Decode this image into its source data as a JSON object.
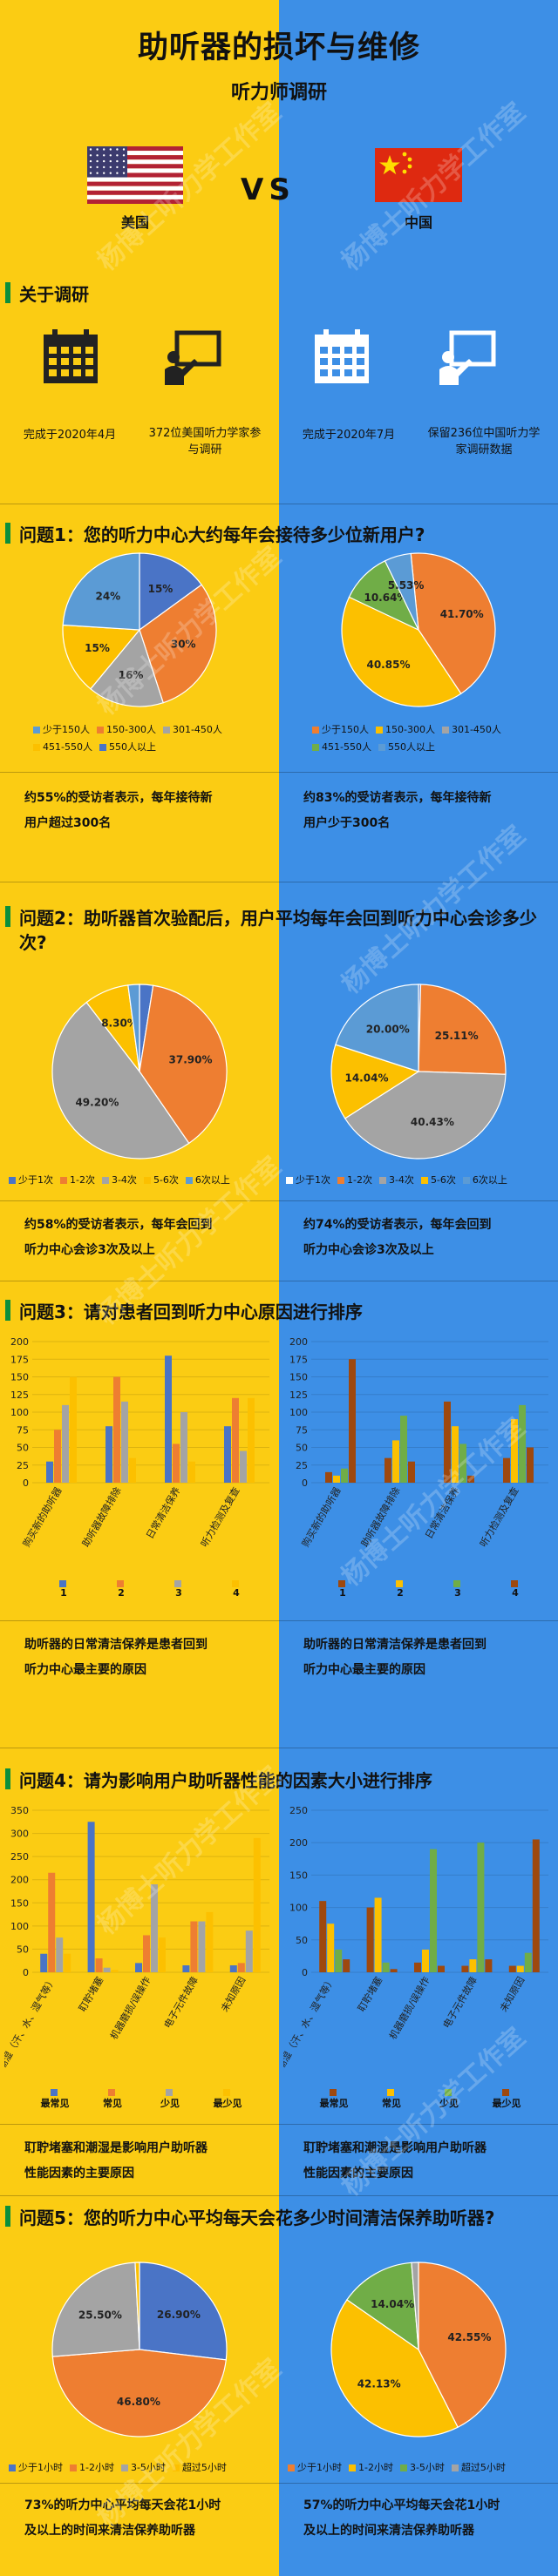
{
  "header": {
    "title": "助听器的损坏与维修",
    "subtitle": "听力师调研",
    "vs": "VS",
    "left_country": "美国",
    "right_country": "中国"
  },
  "about": {
    "title": "关于调研",
    "left_date": "完成于2020年4月",
    "left_people": "372位美国听力学家参与调研",
    "right_date": "完成于2020年7月",
    "right_people": "保留236位中国听力学家调研数据"
  },
  "watermark": "杨博士听力学工作室",
  "colors": {
    "blue": "#4a74c6",
    "orange": "#ee7e31",
    "gray": "#a4a4a4",
    "yellow": "#fcc000",
    "lblue": "#5b9bd5",
    "green": "#70ad47",
    "brown": "#9e480e"
  },
  "q1": {
    "title": "问题1：您的听力中心大约每年会接待多少位新用户?",
    "legend": [
      "少于150人",
      "150-300人",
      "301-450人",
      "451-550人",
      "550人以上"
    ],
    "left_conclusion": [
      "约55%的受访者表示，每年接待新",
      "用户超过300名"
    ],
    "right_conclusion": [
      "约83%的受访者表示，每年接待新",
      "用户少于300名"
    ]
  },
  "q2": {
    "title": "问题2：助听器首次验配后，用户平均每年会回到听力中心会诊多少次?",
    "legend": [
      "少于1次",
      "1-2次",
      "3-4次",
      "5-6次",
      "6次以上"
    ],
    "left_conclusion": [
      "约58%的受访者表示，每年会回到",
      "听力中心会诊3次及以上"
    ],
    "right_conclusion": [
      "约74%的受访者表示，每年会回到",
      "听力中心会诊3次及以上"
    ]
  },
  "q3": {
    "title": "问题3：请对患者回到听力中心原因进行排序",
    "legend": [
      "1",
      "2",
      "3",
      "4"
    ],
    "left_conclusion": [
      "助听器的日常清洁保养是患者回到",
      "听力中心最主要的原因"
    ],
    "right_conclusion": [
      "助听器的日常清洁保养是患者回到",
      "听力中心最主要的原因"
    ]
  },
  "q4": {
    "title": "问题4：请为影响用户助听器性能的因素大小进行排序",
    "legend": [
      "最常见",
      "常见",
      "少见",
      "最少见"
    ],
    "left_conclusion": [
      "耵聍堵塞和潮湿是影响用户助听器",
      "性能因素的主要原因"
    ],
    "right_conclusion": [
      "耵聍堵塞和潮湿是影响用户助听器",
      "性能因素的主要原因"
    ]
  },
  "q5": {
    "title": "问题5：您的听力中心平均每天会花多少时间清洁保养助听器?",
    "legend": [
      "少于1小时",
      "1-2小时",
      "3-5小时",
      "超过5小时"
    ],
    "left_conclusion": [
      "73%的听力中心平均每天会花1小时",
      "及以上的时间来清洁保养助听器"
    ],
    "right_conclusion": [
      "57%的听力中心平均每天会花1小时",
      "及以上的时间来清洁保养助听器"
    ]
  },
  "chart_data": [
    {
      "id": "q1_us",
      "type": "pie",
      "categories": [
        "少于150人",
        "150-300人",
        "301-450人",
        "451-550人",
        "550人以上"
      ],
      "values": [
        15,
        30,
        16,
        15,
        24
      ],
      "labels": [
        "15%",
        "30%",
        "16%",
        "15%",
        "24%"
      ]
    },
    {
      "id": "q1_cn",
      "type": "pie",
      "categories": [
        "少于150人",
        "150-300人",
        "301-450人",
        "451-550人",
        "550人以上"
      ],
      "values": [
        41.7,
        40.85,
        0,
        10.64,
        5.53
      ],
      "labels": [
        "41.70%",
        "40.85%",
        "",
        "10.64%",
        "5.53%"
      ]
    },
    {
      "id": "q2_us",
      "type": "pie",
      "categories": [
        "少于1次",
        "1-2次",
        "3-4次",
        "5-6次",
        "6次以上"
      ],
      "values": [
        2.5,
        37.9,
        49.2,
        8.3,
        2.1
      ],
      "labels": [
        "",
        "37.90%",
        "49.20%",
        "8.30%",
        ""
      ]
    },
    {
      "id": "q2_cn",
      "type": "pie",
      "categories": [
        "少于1次",
        "1-2次",
        "3-4次",
        "5-6次",
        "6次以上"
      ],
      "values": [
        0.4,
        25.11,
        40.43,
        14.04,
        20.0
      ],
      "labels": [
        "",
        "25.11%",
        "40.43%",
        "14.04%",
        "20.00%"
      ]
    },
    {
      "id": "q3_us",
      "type": "bar",
      "ylim": [
        0,
        200
      ],
      "yticks": [
        0,
        25,
        50,
        75,
        100,
        125,
        150,
        175,
        200
      ],
      "categories": [
        "购买新的助听器",
        "助听器故障排除",
        "日常清洁保养",
        "听力检测及复查"
      ],
      "series": [
        {
          "name": "1",
          "values": [
            30,
            80,
            180,
            80
          ]
        },
        {
          "name": "2",
          "values": [
            75,
            150,
            55,
            120
          ]
        },
        {
          "name": "3",
          "values": [
            110,
            115,
            100,
            45
          ]
        },
        {
          "name": "4",
          "values": [
            150,
            35,
            30,
            120
          ]
        }
      ]
    },
    {
      "id": "q3_cn",
      "type": "bar",
      "ylim": [
        0,
        200
      ],
      "yticks": [
        0,
        25,
        50,
        75,
        100,
        125,
        150,
        175,
        200
      ],
      "categories": [
        "购买新的助听器",
        "助听器故障排除",
        "日常清洁保养",
        "听力检测及复查"
      ],
      "series": [
        {
          "name": "1",
          "values": [
            15,
            35,
            115,
            35
          ]
        },
        {
          "name": "2",
          "values": [
            10,
            60,
            80,
            90
          ]
        },
        {
          "name": "3",
          "values": [
            20,
            95,
            55,
            110
          ]
        },
        {
          "name": "4",
          "values": [
            175,
            30,
            10,
            50
          ]
        }
      ]
    },
    {
      "id": "q4_us",
      "type": "bar",
      "ylim": [
        0,
        350
      ],
      "yticks": [
        0,
        50,
        100,
        150,
        200,
        250,
        300,
        350
      ],
      "categories": [
        "潮湿（汗、水、湿气等）",
        "耵聍堵塞",
        "机器磨损/误操作",
        "电子元件故障",
        "未知原因"
      ],
      "series": [
        {
          "name": "最常见",
          "values": [
            40,
            325,
            20,
            15,
            15
          ]
        },
        {
          "name": "常见",
          "values": [
            215,
            30,
            80,
            110,
            20
          ]
        },
        {
          "name": "少见",
          "values": [
            75,
            10,
            190,
            110,
            90
          ]
        },
        {
          "name": "最少见",
          "values": [
            40,
            5,
            75,
            130,
            290
          ]
        }
      ]
    },
    {
      "id": "q4_cn",
      "type": "bar",
      "ylim": [
        0,
        250
      ],
      "yticks": [
        0,
        50,
        100,
        150,
        200,
        250
      ],
      "categories": [
        "潮湿（汗、水、湿气等）",
        "耵聍堵塞",
        "机器磨损/误操作",
        "电子元件故障",
        "未知原因"
      ],
      "series": [
        {
          "name": "最常见",
          "values": [
            110,
            100,
            15,
            10,
            10
          ]
        },
        {
          "name": "常见",
          "values": [
            75,
            115,
            35,
            20,
            10
          ]
        },
        {
          "name": "少见",
          "values": [
            35,
            15,
            190,
            200,
            30
          ]
        },
        {
          "name": "最少见",
          "values": [
            20,
            5,
            10,
            20,
            205
          ]
        }
      ]
    },
    {
      "id": "q5_us",
      "type": "pie",
      "categories": [
        "少于1小时",
        "1-2小时",
        "3-5小时",
        "超过5小时"
      ],
      "values": [
        26.9,
        46.8,
        25.5,
        0.8
      ],
      "labels": [
        "26.90%",
        "46.80%",
        "25.50%",
        ""
      ]
    },
    {
      "id": "q5_cn",
      "type": "pie",
      "categories": [
        "少于1小时",
        "1-2小时",
        "3-5小时",
        "超过5小时"
      ],
      "values": [
        42.55,
        42.13,
        14.04,
        1.28
      ],
      "labels": [
        "42.55%",
        "42.13%",
        "14.04%",
        ""
      ]
    }
  ]
}
